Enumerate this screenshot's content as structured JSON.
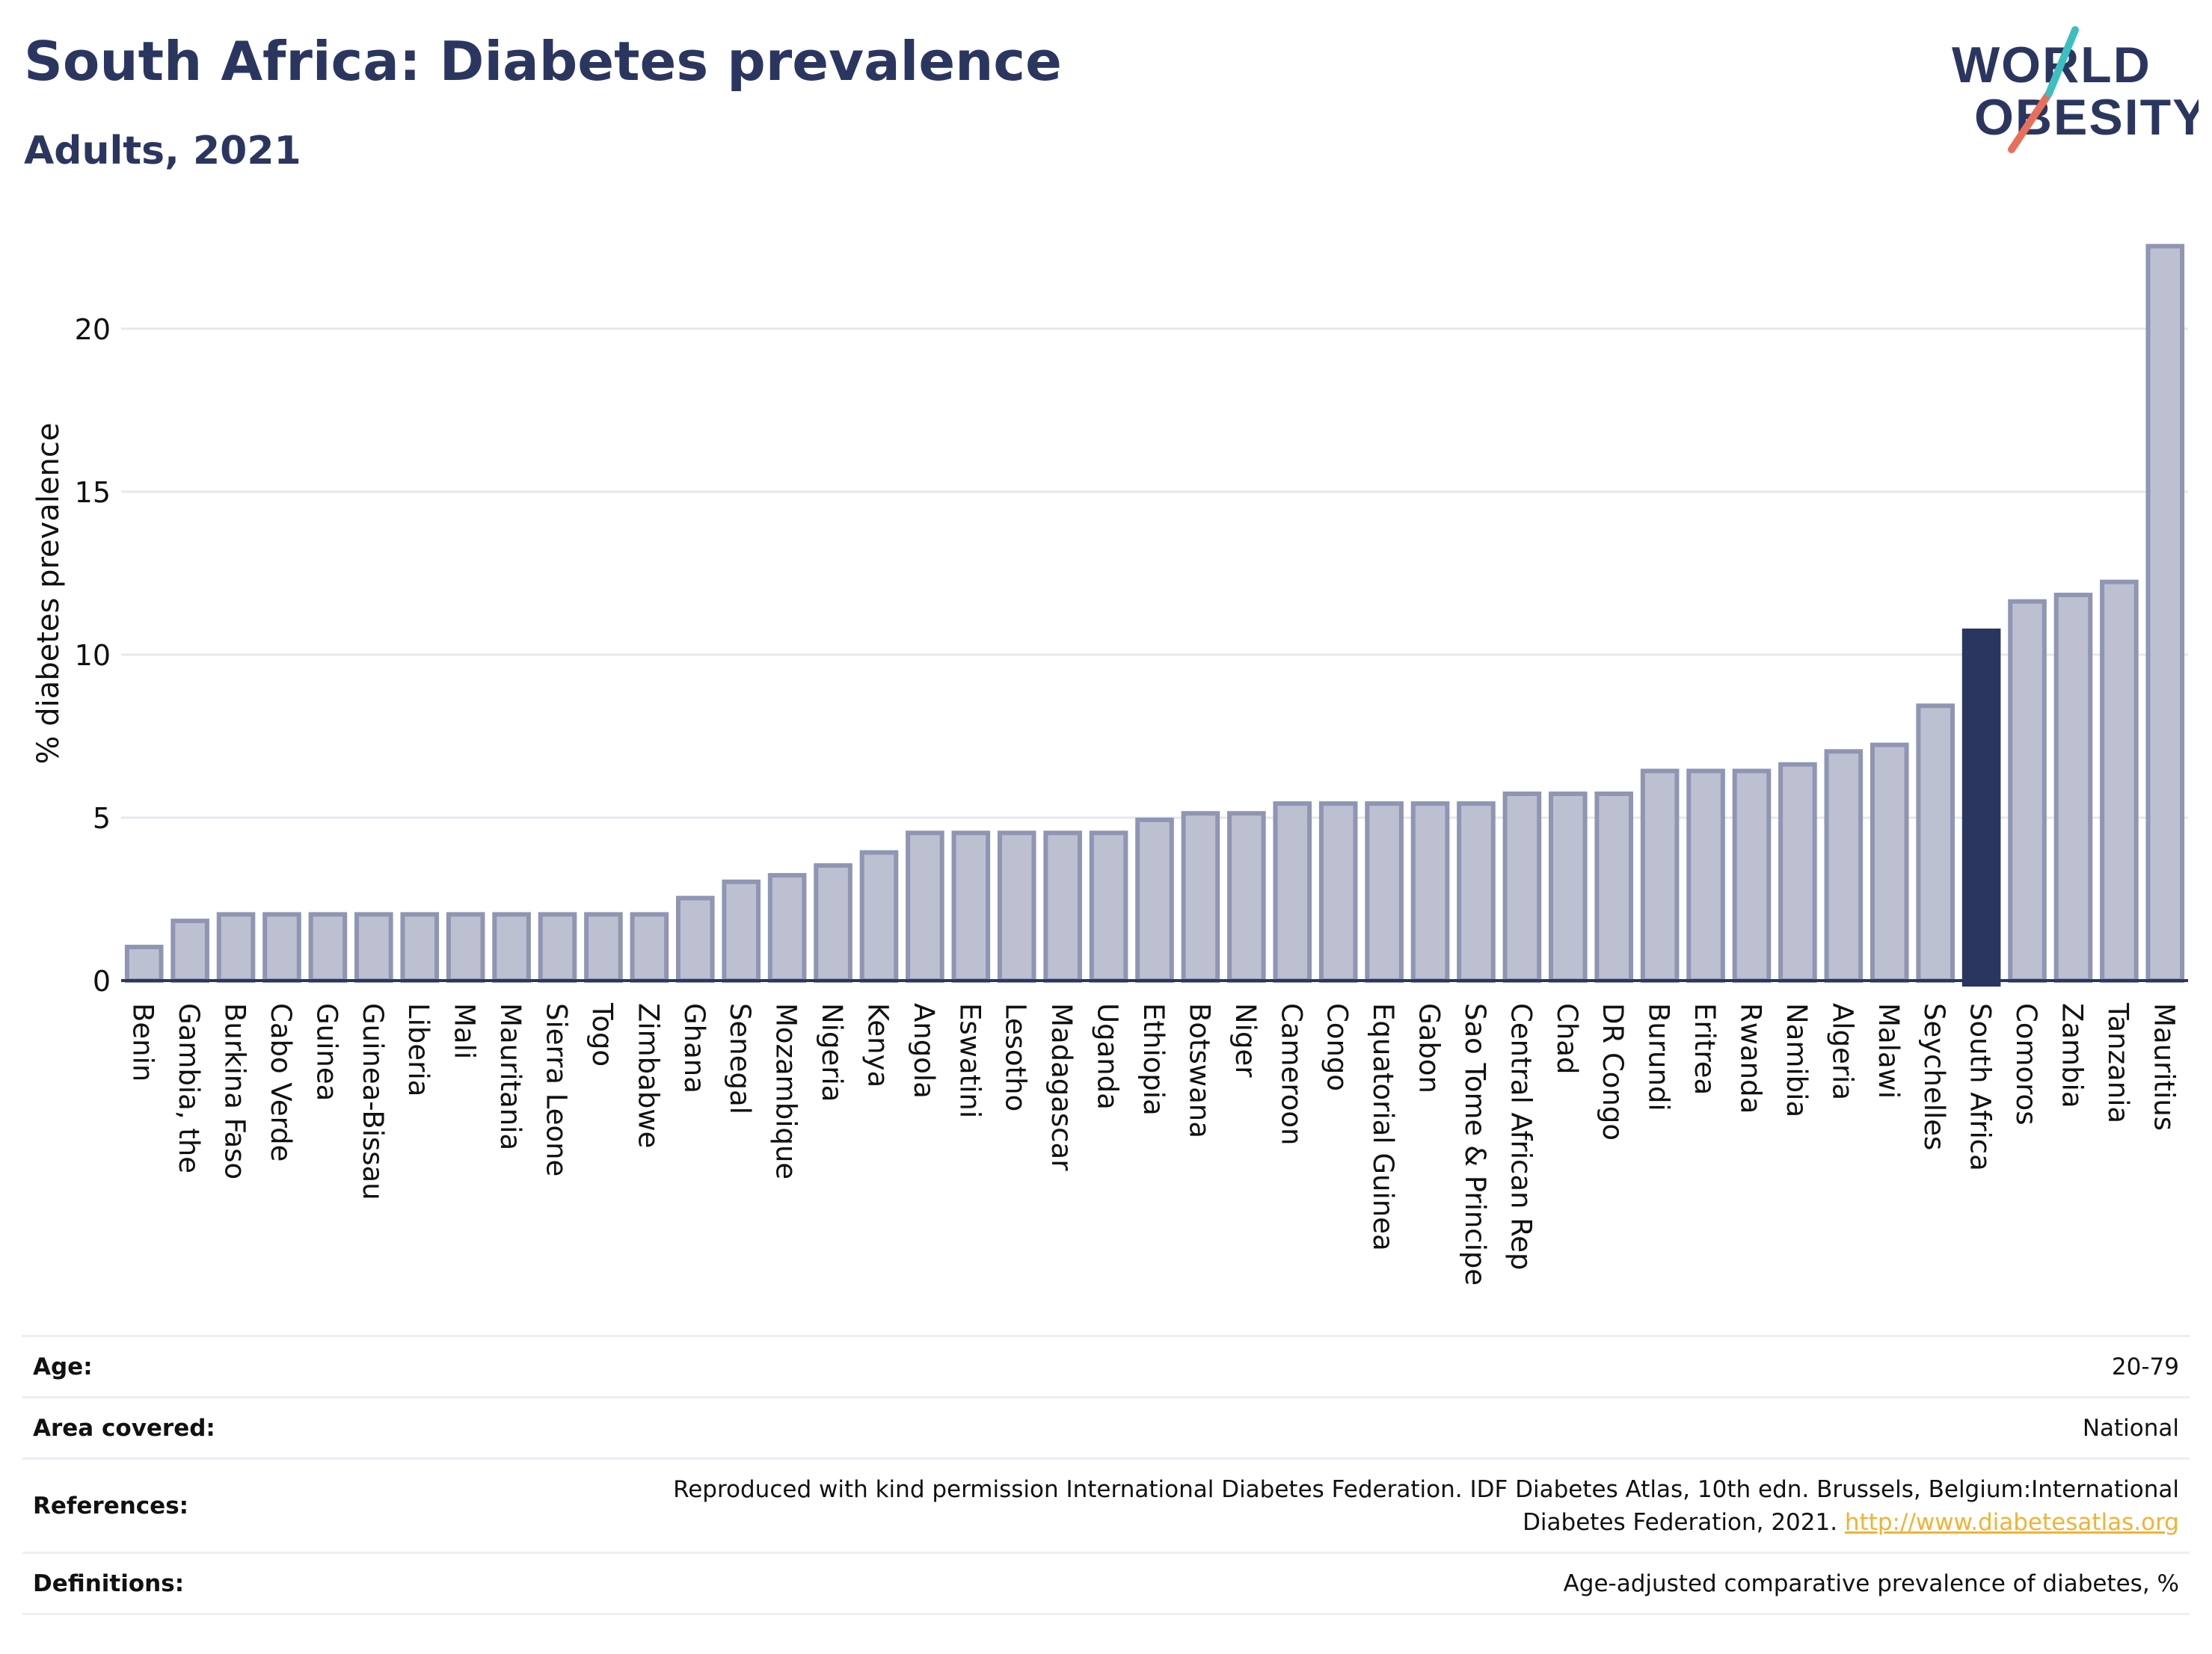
{
  "header": {
    "title": "South Africa: Diabetes prevalence",
    "subtitle": "Adults, 2021"
  },
  "logo": {
    "line1": "WORLD",
    "line2": "OBESITY",
    "accent_colors": [
      "#3dbfbf",
      "#e8705a"
    ]
  },
  "colors": {
    "bar": "#bcc0d1",
    "bar_outline": "#8f95b2",
    "highlight": "#2b3660",
    "grid": "#e6e8f0",
    "text": "#2b3660"
  },
  "chart_data": {
    "type": "bar",
    "title": "South Africa: Diabetes prevalence",
    "subtitle": "Adults, 2021",
    "xlabel": "",
    "ylabel": "% diabetes prevalence",
    "ylim": [
      0,
      22.7
    ],
    "yticks": [
      0,
      5,
      10,
      15,
      20
    ],
    "grid": true,
    "highlight": "South Africa",
    "categories": [
      "Benin",
      "Gambia, the",
      "Burkina Faso",
      "Cabo Verde",
      "Guinea",
      "Guinea-Bissau",
      "Liberia",
      "Mali",
      "Mauritania",
      "Sierra Leone",
      "Togo",
      "Zimbabwe",
      "Ghana",
      "Senegal",
      "Mozambique",
      "Nigeria",
      "Kenya",
      "Angola",
      "Eswatini",
      "Lesotho",
      "Madagascar",
      "Uganda",
      "Ethiopia",
      "Botswana",
      "Niger",
      "Cameroon",
      "Congo",
      "Equatorial Guinea",
      "Gabon",
      "Sao Tome & Principe",
      "Central African Rep",
      "Chad",
      "DR Congo",
      "Burundi",
      "Eritrea",
      "Rwanda",
      "Namibia",
      "Algeria",
      "Malawi",
      "Seychelles",
      "South Africa",
      "Comoros",
      "Zambia",
      "Tanzania",
      "Mauritius"
    ],
    "values": [
      1.1,
      1.9,
      2.1,
      2.1,
      2.1,
      2.1,
      2.1,
      2.1,
      2.1,
      2.1,
      2.1,
      2.1,
      2.6,
      3.1,
      3.3,
      3.6,
      4.0,
      4.6,
      4.6,
      4.6,
      4.6,
      4.6,
      5.0,
      5.2,
      5.2,
      5.5,
      5.5,
      5.5,
      5.5,
      5.5,
      5.8,
      5.8,
      5.8,
      6.5,
      6.5,
      6.5,
      6.7,
      7.1,
      7.3,
      8.5,
      10.8,
      11.7,
      11.9,
      12.3,
      22.6
    ]
  },
  "table": {
    "rows": [
      {
        "label": "Age:",
        "value": "20-79"
      },
      {
        "label": "Area covered:",
        "value": "National"
      },
      {
        "label": "References:",
        "value": "Reproduced with kind permission International Diabetes Federation.  IDF Diabetes Atlas, 10th edn. Brussels, Belgium:International",
        "value2": "Diabetes Federation, 2021. ",
        "link": "http://www.diabetesatlas.org"
      },
      {
        "label": "Definitions:",
        "value": "Age-adjusted comparative prevalence of diabetes, %"
      }
    ]
  }
}
